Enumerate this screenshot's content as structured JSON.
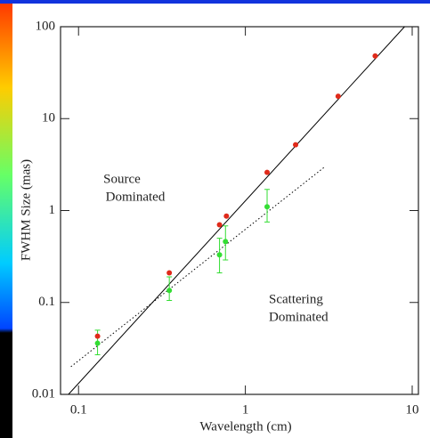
{
  "chart_data": {
    "type": "scatter",
    "x_label": "Wavelength (cm)",
    "y_label": "FWHM Size (mas)",
    "log_x": true,
    "log_y": true,
    "xlim": [
      0.078,
      10.9
    ],
    "ylim": [
      0.01,
      100
    ],
    "xticks": [
      0.1,
      1,
      10
    ],
    "yticks": [
      0.01,
      0.1,
      1,
      10,
      100
    ],
    "annotations": [
      [
        "Source",
        "Dominated"
      ],
      [
        "Scattering",
        "Dominated"
      ]
    ],
    "series": [
      {
        "kind": "line",
        "style": "solid",
        "color": "#000000",
        "x": [
          0.087,
          9
        ],
        "values": [
          0.01,
          100
        ]
      },
      {
        "kind": "line",
        "style": "dotted",
        "color": "#000000",
        "x": [
          0.09,
          3
        ],
        "values": [
          0.02,
          3
        ]
      },
      {
        "kind": "points",
        "color": "#33dd33",
        "x": [
          0.13,
          0.35,
          0.7,
          0.76,
          1.35
        ],
        "values": [
          0.036,
          0.135,
          0.33,
          0.46,
          1.1
        ],
        "error_low": [
          0.009,
          0.03,
          0.12,
          0.17,
          0.35
        ],
        "error_high": [
          0.014,
          0.055,
          0.17,
          0.22,
          0.6
        ]
      },
      {
        "kind": "points",
        "color": "#e02a1a",
        "x": [
          0.13,
          0.35,
          0.7,
          0.77,
          1.35,
          2,
          3.6,
          6
        ],
        "values": [
          0.043,
          0.21,
          0.7,
          0.87,
          2.6,
          5.2,
          17.5,
          48
        ]
      }
    ]
  }
}
